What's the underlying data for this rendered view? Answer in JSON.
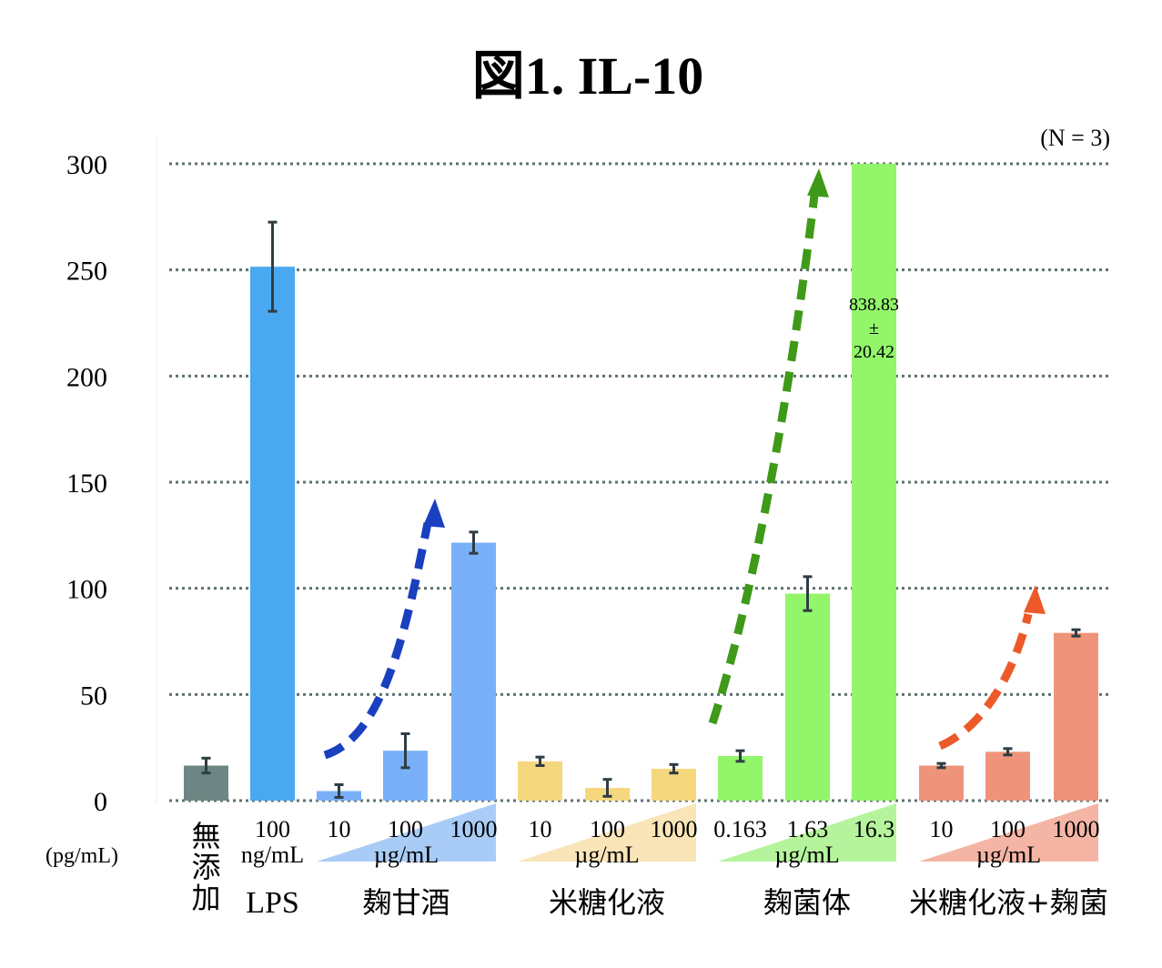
{
  "chart_data": {
    "type": "bar",
    "title": "図1. IL-10",
    "xlabel": "",
    "ylabel": "(pg/mL)",
    "ylim": [
      0,
      300
    ],
    "yticks": [
      0,
      50,
      100,
      150,
      200,
      250,
      300
    ],
    "grid": true,
    "annotation_n": "(N = 3)",
    "groups": [
      {
        "name": "無添加",
        "unit": "",
        "color": "#6e8683",
        "triangle_color": null,
        "arrow_color": null,
        "bars": [
          {
            "label": "",
            "value": 16.5,
            "error": 3.5
          }
        ]
      },
      {
        "name": "LPS",
        "unit": "ng/mL",
        "color": "#4aa8f0",
        "triangle_color": null,
        "arrow_color": null,
        "bars": [
          {
            "label": "100",
            "value": 251.5,
            "error": 21
          }
        ]
      },
      {
        "name": "麹甘酒",
        "unit": "µg/mL",
        "color": "#7ab0f7",
        "triangle_color": "#a9ccf7",
        "arrow_color": "#1a3fbf",
        "bars": [
          {
            "label": "10",
            "value": 4.5,
            "error": 3
          },
          {
            "label": "100",
            "value": 23.5,
            "error": 8
          },
          {
            "label": "1000",
            "value": 121.5,
            "error": 5
          }
        ]
      },
      {
        "name": "米糖化液",
        "unit": "µg/mL",
        "color": "#f5d87e",
        "triangle_color": "#f9e5b8",
        "arrow_color": null,
        "bars": [
          {
            "label": "10",
            "value": 18.5,
            "error": 2
          },
          {
            "label": "100",
            "value": 6,
            "error": 4
          },
          {
            "label": "1000",
            "value": 15,
            "error": 2
          }
        ]
      },
      {
        "name": "麹菌体",
        "unit": "µg/mL",
        "color": "#92f56a",
        "triangle_color": "#b5f49c",
        "arrow_color": "#3e9a18",
        "bars": [
          {
            "label": "0.163",
            "value": 21,
            "error": 2.5
          },
          {
            "label": "1.63",
            "value": 97.5,
            "error": 8
          },
          {
            "label": "16.3",
            "value": 838.83,
            "error": 20.42,
            "clipped": true,
            "value_label": [
              "838.83",
              "±",
              "20.42"
            ]
          }
        ]
      },
      {
        "name": "米糖化液+麹菌",
        "unit": "µg/mL",
        "color": "#ef947a",
        "triangle_color": "#f5b5a5",
        "arrow_color": "#ec5a2a",
        "bars": [
          {
            "label": "10",
            "value": 16.5,
            "error": 1
          },
          {
            "label": "100",
            "value": 23,
            "error": 1.5
          },
          {
            "label": "1000",
            "value": 79,
            "error": 1.5
          }
        ]
      }
    ]
  },
  "text": {
    "title": "図1. IL-10",
    "n_label": "(N = 3)",
    "y_unit": "(pg/mL)",
    "no_additive_chars": [
      "無",
      "添",
      "加"
    ]
  }
}
